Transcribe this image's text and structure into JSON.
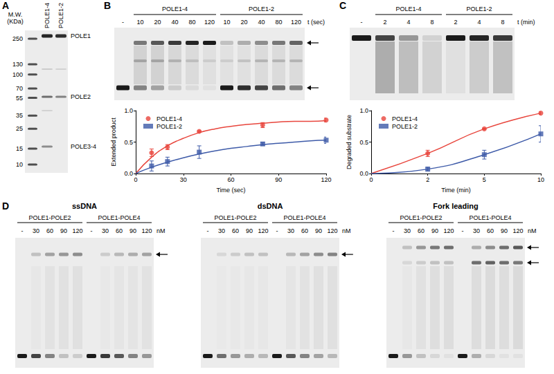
{
  "panel_letters": [
    "A",
    "B",
    "C",
    "D"
  ],
  "gel_A": {
    "mw_title": "M.W. (KDa)",
    "mw_markers": [
      250,
      130,
      100,
      70,
      55,
      35,
      25,
      15,
      10
    ],
    "lanes": [
      "POLE1-4",
      "POLE1-2"
    ],
    "bands": [
      "POLE1",
      "POLE2",
      "POLE3-4"
    ]
  },
  "gel_B": {
    "blank": "-",
    "groups": [
      "POLE1-4",
      "POLE1-2"
    ],
    "times": [
      10,
      20,
      40,
      80,
      120
    ],
    "time_label": "t (sec)"
  },
  "gel_C": {
    "blank": "-",
    "groups": [
      "POLE1-4",
      "POLE1-2"
    ],
    "times": [
      2,
      4,
      8
    ],
    "time_label": "t (min)"
  },
  "gels_D": {
    "titles": [
      "ssDNA",
      "dsDNA",
      "Fork leading"
    ],
    "blank": "-",
    "groups": [
      "POLE1-POLE2",
      "POLE1-POLE4"
    ],
    "concentrations": [
      30,
      60,
      90,
      120
    ],
    "unit": "nM"
  },
  "chart_data": [
    {
      "type": "line",
      "x_label": "Time (sec)",
      "y_label": "Extended product",
      "x": [
        10,
        20,
        40,
        80,
        120
      ],
      "fit_x": [
        0,
        10,
        20,
        30,
        40,
        50,
        60,
        70,
        80,
        90,
        100,
        110,
        120
      ],
      "xlim": [
        0,
        120
      ],
      "xticks": [
        0,
        30,
        60,
        90,
        120
      ],
      "ylim": [
        0,
        1
      ],
      "yticks": [
        {
          "value": 0,
          "label": "0.0"
        },
        {
          "value": 0.5,
          "label": "0.5"
        },
        {
          "value": 1,
          "label": "1.0"
        }
      ],
      "grid": false,
      "legend": "upper left",
      "series": [
        {
          "name": "POLE1-4",
          "color": "#e8453c",
          "marker": "circle",
          "values": [
            0.33,
            0.42,
            0.67,
            0.77,
            0.85
          ],
          "errors": [
            0.06,
            0.04,
            0.01,
            0.04,
            0.03
          ],
          "fit_values": [
            0,
            0.26,
            0.44,
            0.56,
            0.65,
            0.71,
            0.75,
            0.78,
            0.8,
            0.82,
            0.83,
            0.83,
            0.84
          ]
        },
        {
          "name": "POLE1-2",
          "color": "#3d5aa8",
          "marker": "square",
          "values": [
            0.12,
            0.19,
            0.34,
            0.47,
            0.53
          ],
          "errors": [
            0.08,
            0.07,
            0.1,
            0.02,
            0.05
          ],
          "fit_values": [
            0,
            0.1,
            0.18,
            0.25,
            0.31,
            0.36,
            0.4,
            0.43,
            0.46,
            0.48,
            0.5,
            0.52,
            0.53
          ]
        }
      ]
    },
    {
      "type": "line",
      "x_label": "Time (min)",
      "y_label": "Degraded substrate",
      "categories": [
        0,
        2,
        5,
        10
      ],
      "ylim": [
        0,
        1
      ],
      "yticks": [
        {
          "value": 0,
          "label": "0.0"
        },
        {
          "value": 0.5,
          "label": "0.5"
        },
        {
          "value": 1,
          "label": "1.0"
        }
      ],
      "grid": false,
      "legend": "upper left",
      "series": [
        {
          "name": "POLE1-4",
          "color": "#e8453c",
          "marker": "circle",
          "values": [
            null,
            0.32,
            0.71,
            0.96
          ],
          "errors": [
            null,
            0.05,
            0.01,
            0.02
          ],
          "fit_values": [
            0,
            0.32,
            0.71,
            0.96
          ]
        },
        {
          "name": "POLE1-2",
          "color": "#3d5aa8",
          "marker": "square",
          "values": [
            null,
            0.07,
            0.3,
            0.63
          ],
          "errors": [
            null,
            0.03,
            0.07,
            0.13
          ],
          "fit_values": [
            0,
            0.07,
            0.3,
            0.63
          ]
        }
      ]
    }
  ]
}
